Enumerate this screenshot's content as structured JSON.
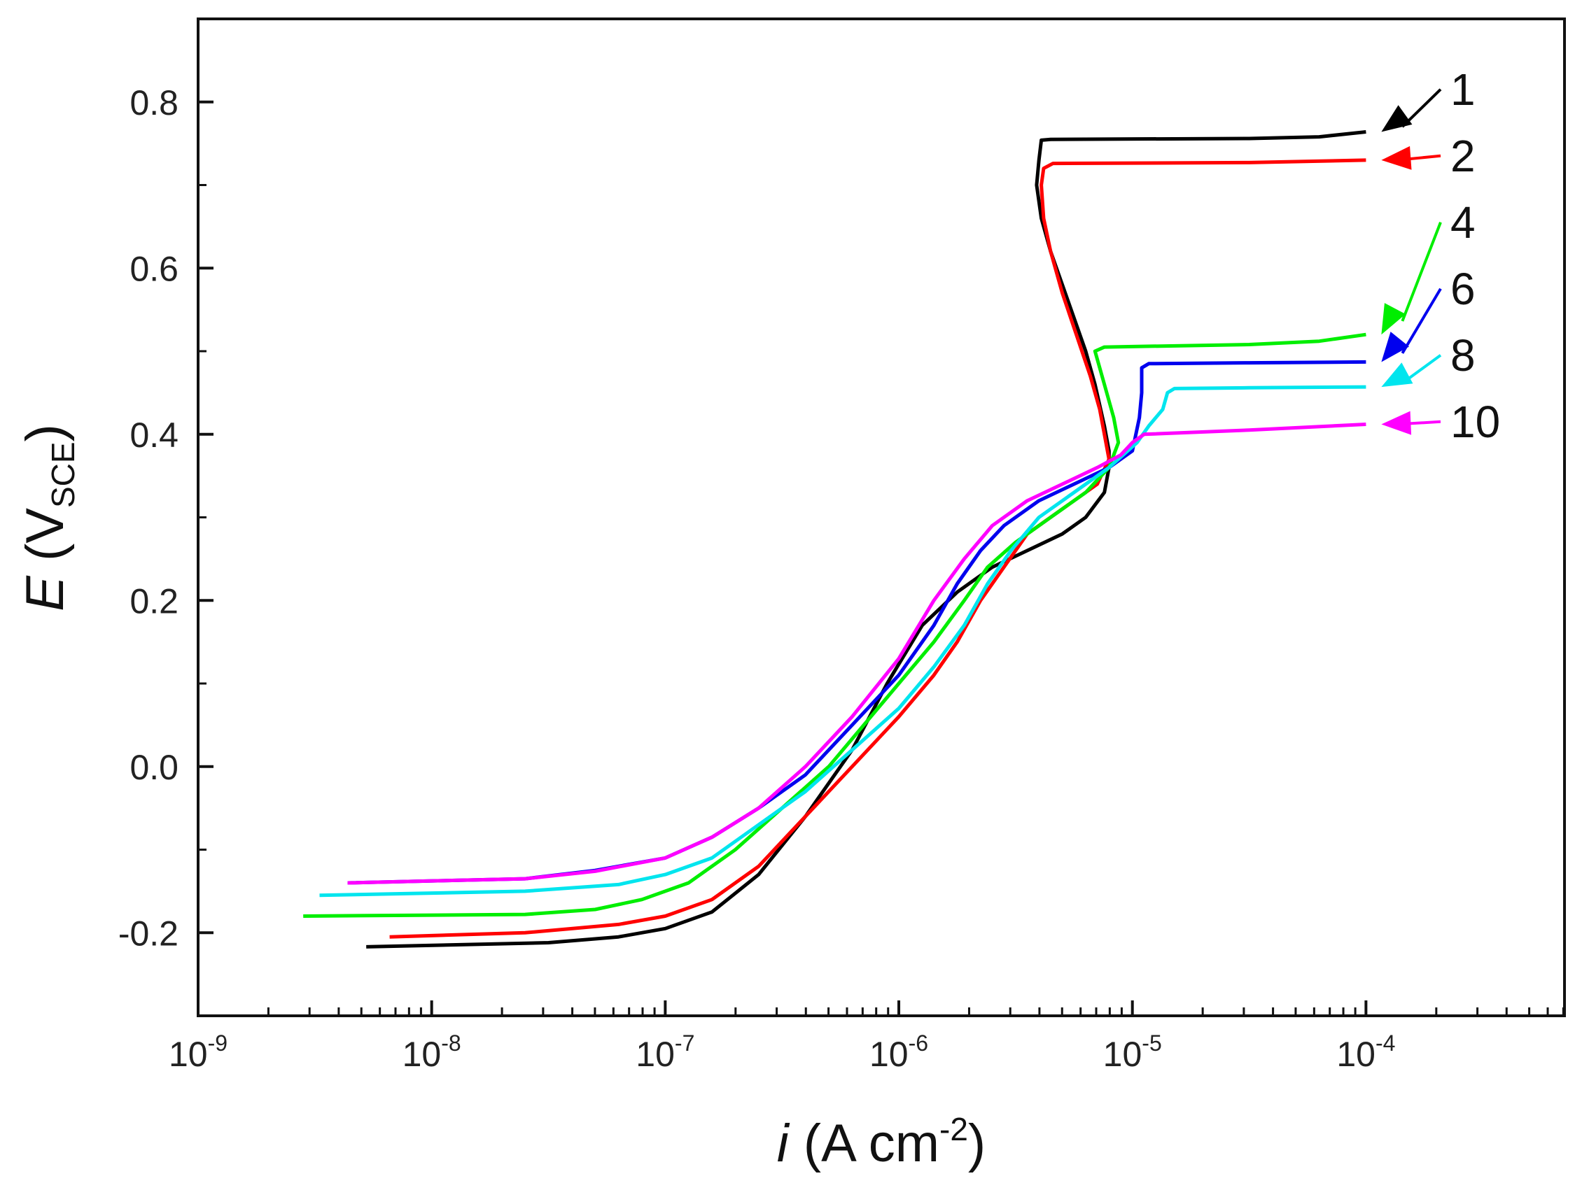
{
  "chart_data": {
    "type": "line",
    "title": "",
    "xlabel": {
      "var": "i",
      "unit_pre": " (A cm",
      "unit_exp": "-2",
      "unit_post": ")"
    },
    "ylabel": {
      "var": "E",
      "unit_pre": " (V",
      "unit_sub": "SCE",
      "unit_post": ")"
    },
    "xscale": "log",
    "xlim_exp": [
      -9,
      -3.15
    ],
    "ylim": [
      -0.3,
      0.9
    ],
    "x_ticks": [
      {
        "base": "10",
        "exp": "-9",
        "value": -9
      },
      {
        "base": "10",
        "exp": "-8",
        "value": -8
      },
      {
        "base": "10",
        "exp": "-7",
        "value": -7
      },
      {
        "base": "10",
        "exp": "-6",
        "value": -6
      },
      {
        "base": "10",
        "exp": "-5",
        "value": -5
      },
      {
        "base": "10",
        "exp": "-4",
        "value": -4
      }
    ],
    "y_ticks": [
      {
        "label": "-0.2",
        "value": -0.2
      },
      {
        "label": "0.0",
        "value": 0.0
      },
      {
        "label": "0.2",
        "value": 0.2
      },
      {
        "label": "0.4",
        "value": 0.4
      },
      {
        "label": "0.6",
        "value": 0.6
      },
      {
        "label": "0.8",
        "value": 0.8
      }
    ],
    "series": [
      {
        "name": "1",
        "color": "#000000",
        "label_y": 0.8,
        "arrow_to": [
          -4.0,
          0.764
        ],
        "points": [
          [
            -8.28,
            -0.217
          ],
          [
            -7.5,
            -0.212
          ],
          [
            -7.2,
            -0.205
          ],
          [
            -7.0,
            -0.195
          ],
          [
            -6.8,
            -0.175
          ],
          [
            -6.6,
            -0.13
          ],
          [
            -6.4,
            -0.06
          ],
          [
            -6.2,
            0.02
          ],
          [
            -6.05,
            0.1
          ],
          [
            -5.9,
            0.17
          ],
          [
            -5.75,
            0.21
          ],
          [
            -5.6,
            0.24
          ],
          [
            -5.45,
            0.26
          ],
          [
            -5.3,
            0.28
          ],
          [
            -5.2,
            0.3
          ],
          [
            -5.12,
            0.33
          ],
          [
            -5.1,
            0.36
          ],
          [
            -5.1,
            0.38
          ],
          [
            -5.12,
            0.41
          ],
          [
            -5.16,
            0.46
          ],
          [
            -5.2,
            0.5
          ],
          [
            -5.25,
            0.54
          ],
          [
            -5.3,
            0.58
          ],
          [
            -5.35,
            0.62
          ],
          [
            -5.39,
            0.66
          ],
          [
            -5.41,
            0.7
          ],
          [
            -5.4,
            0.73
          ],
          [
            -5.39,
            0.754
          ],
          [
            -5.35,
            0.755
          ],
          [
            -4.5,
            0.756
          ],
          [
            -4.2,
            0.758
          ],
          [
            -4.0,
            0.764
          ]
        ]
      },
      {
        "name": "2",
        "color": "#ff0000",
        "label_y": 0.72,
        "arrow_to": [
          -4.0,
          0.73
        ],
        "points": [
          [
            -8.18,
            -0.205
          ],
          [
            -7.6,
            -0.2
          ],
          [
            -7.2,
            -0.19
          ],
          [
            -7.0,
            -0.18
          ],
          [
            -6.8,
            -0.16
          ],
          [
            -6.6,
            -0.12
          ],
          [
            -6.4,
            -0.06
          ],
          [
            -6.2,
            0.0
          ],
          [
            -6.0,
            0.06
          ],
          [
            -5.85,
            0.11
          ],
          [
            -5.75,
            0.15
          ],
          [
            -5.65,
            0.2
          ],
          [
            -5.55,
            0.24
          ],
          [
            -5.45,
            0.28
          ],
          [
            -5.3,
            0.31
          ],
          [
            -5.15,
            0.34
          ],
          [
            -5.1,
            0.37
          ],
          [
            -5.12,
            0.4
          ],
          [
            -5.14,
            0.43
          ],
          [
            -5.18,
            0.47
          ],
          [
            -5.24,
            0.52
          ],
          [
            -5.3,
            0.57
          ],
          [
            -5.35,
            0.62
          ],
          [
            -5.38,
            0.66
          ],
          [
            -5.39,
            0.7
          ],
          [
            -5.38,
            0.72
          ],
          [
            -5.34,
            0.726
          ],
          [
            -4.5,
            0.727
          ],
          [
            -4.0,
            0.73
          ]
        ]
      },
      {
        "name": "4",
        "color": "#00ee00",
        "label_y": 0.64,
        "arrow_to": [
          -4.0,
          0.52
        ],
        "points": [
          [
            -8.55,
            -0.18
          ],
          [
            -7.6,
            -0.178
          ],
          [
            -7.3,
            -0.172
          ],
          [
            -7.1,
            -0.16
          ],
          [
            -6.9,
            -0.14
          ],
          [
            -6.7,
            -0.1
          ],
          [
            -6.5,
            -0.05
          ],
          [
            -6.3,
            0.0
          ],
          [
            -6.15,
            0.05
          ],
          [
            -6.0,
            0.1
          ],
          [
            -5.85,
            0.15
          ],
          [
            -5.72,
            0.2
          ],
          [
            -5.62,
            0.24
          ],
          [
            -5.5,
            0.27
          ],
          [
            -5.35,
            0.3
          ],
          [
            -5.2,
            0.33
          ],
          [
            -5.1,
            0.36
          ],
          [
            -5.06,
            0.39
          ],
          [
            -5.08,
            0.42
          ],
          [
            -5.12,
            0.46
          ],
          [
            -5.16,
            0.5
          ],
          [
            -5.12,
            0.505
          ],
          [
            -4.5,
            0.508
          ],
          [
            -4.2,
            0.512
          ],
          [
            -4.0,
            0.52
          ]
        ]
      },
      {
        "name": "6",
        "color": "#0000ee",
        "label_y": 0.56,
        "arrow_to": [
          -4.0,
          0.487
        ],
        "points": [
          [
            -8.36,
            -0.14
          ],
          [
            -7.6,
            -0.135
          ],
          [
            -7.3,
            -0.125
          ],
          [
            -7.0,
            -0.11
          ],
          [
            -6.8,
            -0.085
          ],
          [
            -6.6,
            -0.05
          ],
          [
            -6.4,
            -0.01
          ],
          [
            -6.2,
            0.05
          ],
          [
            -6.0,
            0.11
          ],
          [
            -5.85,
            0.17
          ],
          [
            -5.75,
            0.22
          ],
          [
            -5.65,
            0.26
          ],
          [
            -5.55,
            0.29
          ],
          [
            -5.4,
            0.32
          ],
          [
            -5.25,
            0.34
          ],
          [
            -5.1,
            0.36
          ],
          [
            -5.0,
            0.38
          ],
          [
            -4.97,
            0.42
          ],
          [
            -4.96,
            0.45
          ],
          [
            -4.96,
            0.48
          ],
          [
            -4.93,
            0.485
          ],
          [
            -4.5,
            0.486
          ],
          [
            -4.0,
            0.487
          ]
        ]
      },
      {
        "name": "8",
        "color": "#00e5ee",
        "label_y": 0.48,
        "arrow_to": [
          -4.0,
          0.457
        ],
        "points": [
          [
            -8.48,
            -0.155
          ],
          [
            -7.6,
            -0.15
          ],
          [
            -7.2,
            -0.142
          ],
          [
            -7.0,
            -0.13
          ],
          [
            -6.8,
            -0.11
          ],
          [
            -6.6,
            -0.07
          ],
          [
            -6.4,
            -0.03
          ],
          [
            -6.2,
            0.02
          ],
          [
            -6.0,
            0.07
          ],
          [
            -5.85,
            0.12
          ],
          [
            -5.72,
            0.17
          ],
          [
            -5.62,
            0.22
          ],
          [
            -5.52,
            0.26
          ],
          [
            -5.4,
            0.3
          ],
          [
            -5.25,
            0.33
          ],
          [
            -5.1,
            0.36
          ],
          [
            -4.98,
            0.39
          ],
          [
            -4.93,
            0.41
          ],
          [
            -4.87,
            0.43
          ],
          [
            -4.85,
            0.45
          ],
          [
            -4.82,
            0.455
          ],
          [
            -4.5,
            0.456
          ],
          [
            -4.0,
            0.457
          ]
        ]
      },
      {
        "name": "10",
        "color": "#ff00ff",
        "label_y": 0.4,
        "arrow_to": [
          -4.0,
          0.412
        ],
        "points": [
          [
            -8.36,
            -0.14
          ],
          [
            -7.6,
            -0.135
          ],
          [
            -7.3,
            -0.126
          ],
          [
            -7.0,
            -0.11
          ],
          [
            -6.8,
            -0.085
          ],
          [
            -6.6,
            -0.05
          ],
          [
            -6.4,
            0.0
          ],
          [
            -6.2,
            0.06
          ],
          [
            -6.0,
            0.13
          ],
          [
            -5.85,
            0.2
          ],
          [
            -5.72,
            0.25
          ],
          [
            -5.6,
            0.29
          ],
          [
            -5.45,
            0.32
          ],
          [
            -5.3,
            0.34
          ],
          [
            -5.15,
            0.36
          ],
          [
            -5.05,
            0.375
          ],
          [
            -5.0,
            0.39
          ],
          [
            -4.95,
            0.4
          ],
          [
            -4.5,
            0.405
          ],
          [
            -4.0,
            0.412
          ]
        ]
      }
    ]
  }
}
